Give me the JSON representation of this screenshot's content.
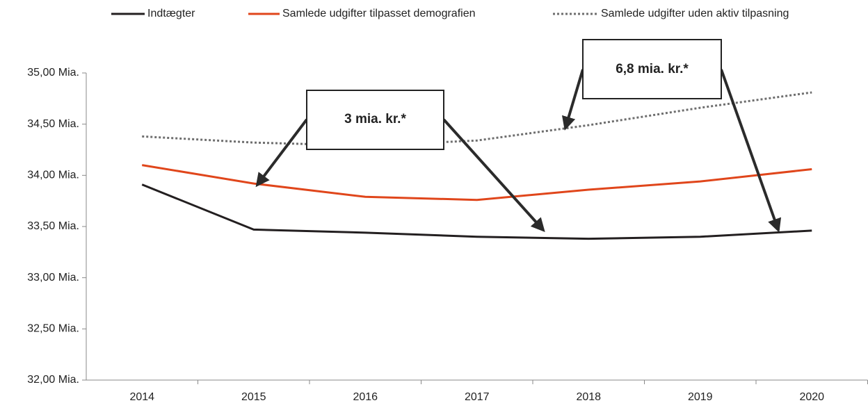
{
  "chart_data": {
    "type": "line",
    "categories": [
      "2014",
      "2015",
      "2016",
      "2017",
      "2018",
      "2019",
      "2020"
    ],
    "series": [
      {
        "name": "Indtægter",
        "color": "#231f20",
        "style": "solid",
        "values": [
          33.91,
          33.47,
          33.44,
          33.4,
          33.38,
          33.4,
          33.46
        ]
      },
      {
        "name": "Samlede udgifter tilpasset demografien",
        "color": "#e0461b",
        "style": "solid",
        "values": [
          34.1,
          33.92,
          33.79,
          33.76,
          33.86,
          33.94,
          34.06
        ]
      },
      {
        "name": "Samlede udgifter uden aktiv tilpasning",
        "color": "#6e6e6e",
        "style": "dotted",
        "values": [
          34.38,
          34.32,
          34.29,
          34.34,
          34.49,
          34.66,
          34.81
        ]
      }
    ],
    "ylim": [
      32,
      35
    ],
    "yticks": [
      {
        "value": 32,
        "label": "32,00 Mia."
      },
      {
        "value": 32.5,
        "label": "32,50 Mia."
      },
      {
        "value": 33,
        "label": "33,00 Mia."
      },
      {
        "value": 33.5,
        "label": "33,50 Mia."
      },
      {
        "value": 34,
        "label": "34,00 Mia."
      },
      {
        "value": 34.5,
        "label": "34,50 Mia."
      },
      {
        "value": 35,
        "label": "35,00 Mia."
      }
    ],
    "grid": false,
    "legend": "top",
    "annotations": [
      {
        "text": "3 mia. kr.*"
      },
      {
        "text": "6,8 mia. kr.*"
      }
    ]
  }
}
